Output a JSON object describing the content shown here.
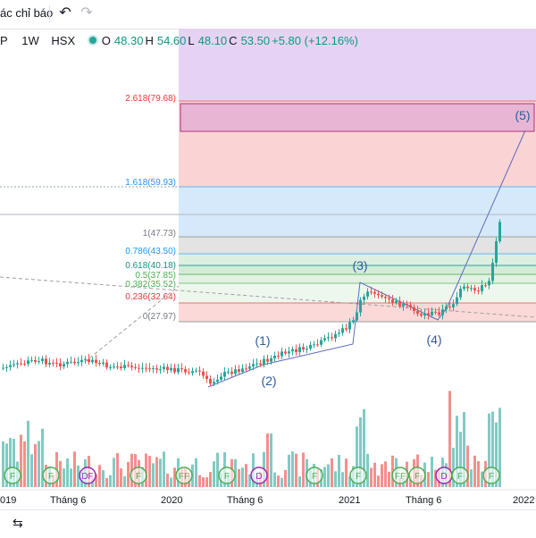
{
  "toolbar": {
    "indicators_label": "ác chỉ báo",
    "undo_icon": "undo-icon",
    "redo_icon": "redo-icon"
  },
  "legend": {
    "symbol": "P",
    "interval": "1W",
    "exchange": "HSX",
    "open_label": "O",
    "open": "48.30",
    "high_label": "H",
    "high": "54.60",
    "low_label": "L",
    "low": "48.10",
    "close_label": "C",
    "close": "53.50",
    "change": "+5.80 (+12.16%)"
  },
  "fibonacci": [
    {
      "ratio": "2.618",
      "price": 79.68,
      "label": "2.618(79.68)",
      "color": "#e53935"
    },
    {
      "ratio": "1.618",
      "price": 59.93,
      "label": "1.618(59.93)",
      "color": "#2196f3"
    },
    {
      "ratio": "1",
      "price": 47.73,
      "label": "1(47.73)",
      "color": "#787b86"
    },
    {
      "ratio": "0.786",
      "price": 43.5,
      "label": "0.786(43.50)",
      "color": "#2196f3"
    },
    {
      "ratio": "0.618",
      "price": 40.18,
      "label": "0.618(40.18)",
      "color": "#089981"
    },
    {
      "ratio": "0.5",
      "price": 37.85,
      "label": "0.5(37.85)",
      "color": "#4caf50"
    },
    {
      "ratio": "0.382",
      "price": 35.52,
      "label": "0.382(35.52)",
      "color": "#4caf50"
    },
    {
      "ratio": "0.236",
      "price": 32.64,
      "label": "0.236(32.64)",
      "color": "#e53935"
    },
    {
      "ratio": "0",
      "price": 27.97,
      "label": "0(27.97)",
      "color": "#787b86"
    }
  ],
  "waves": [
    "(1)",
    "(2)",
    "(3)",
    "(4)",
    "(5)"
  ],
  "xaxis": [
    "019",
    "Tháng 6",
    "2020",
    "Tháng 6",
    "2021",
    "Tháng 6",
    "2022"
  ],
  "events": [
    "F",
    "F",
    "DF",
    "F",
    "FF",
    "F",
    "D",
    "F",
    "F",
    "FF",
    "F",
    "D",
    "F",
    "F"
  ],
  "colors": {
    "up": "#26a69a",
    "down": "#ef5350",
    "vol_up": "#80cbc4",
    "vol_down": "#f48f8c",
    "wave": "#2962ff"
  }
}
